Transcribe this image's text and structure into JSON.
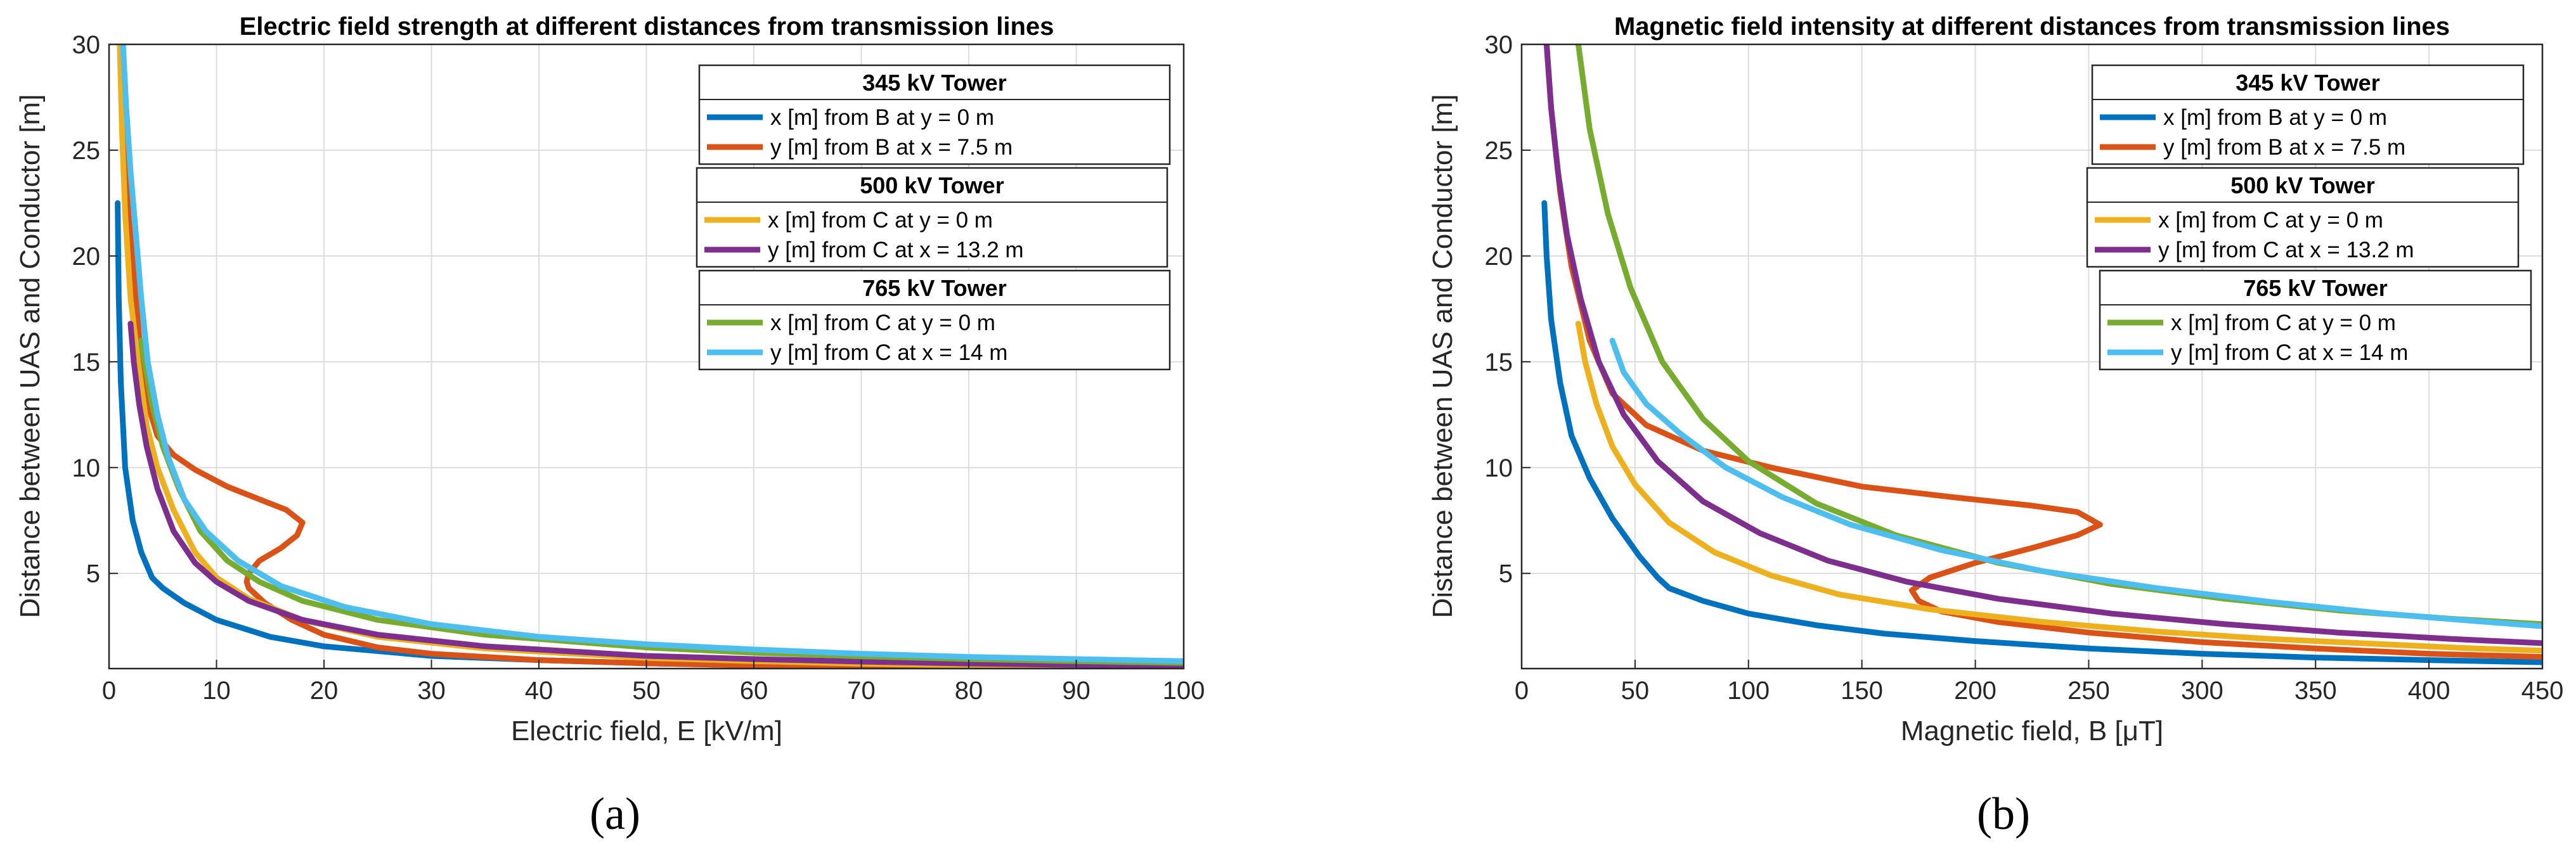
{
  "chart_data": [
    {
      "type": "line",
      "panel_label": "(a)",
      "title": "Electric field strength at different distances from transmission lines",
      "xlabel": "Electric field, E [kV/m]",
      "ylabel": "Distance between UAS and Conductor [m]",
      "xlim": [
        0,
        100
      ],
      "ylim": [
        0.5,
        30
      ],
      "xticks": [
        0,
        10,
        20,
        30,
        40,
        50,
        60,
        70,
        80,
        90,
        100
      ],
      "yticks": [
        5,
        10,
        15,
        20,
        25,
        30
      ],
      "grid": true,
      "legend_position": "top-right",
      "legend_groups": [
        {
          "header": "345 kV Tower",
          "series": [
            0,
            1
          ]
        },
        {
          "header": "500 kV Tower",
          "series": [
            2,
            3
          ]
        },
        {
          "header": "765 kV Tower",
          "series": [
            4,
            5
          ]
        }
      ],
      "series": [
        {
          "name": "x [m] from B at y = 0 m",
          "color": "#0072BD",
          "points": [
            [
              0.8,
              22.5
            ],
            [
              0.9,
              18
            ],
            [
              1.1,
              14
            ],
            [
              1.5,
              10
            ],
            [
              2.2,
              7.5
            ],
            [
              3,
              6
            ],
            [
              4,
              4.8
            ],
            [
              5,
              4.3
            ],
            [
              7,
              3.6
            ],
            [
              10,
              2.8
            ],
            [
              15,
              2
            ],
            [
              20,
              1.55
            ],
            [
              30,
              1.1
            ],
            [
              40,
              0.9
            ],
            [
              50,
              0.75
            ],
            [
              60,
              0.65
            ],
            [
              70,
              0.58
            ],
            [
              80,
              0.52
            ],
            [
              90,
              0.48
            ],
            [
              100,
              0.45
            ]
          ]
        },
        {
          "name": "y [m] from B at x = 7.5 m",
          "color": "#D95319",
          "points": [
            [
              1.2,
              30
            ],
            [
              1.4,
              26
            ],
            [
              1.8,
              22
            ],
            [
              2.5,
              18
            ],
            [
              3,
              15
            ],
            [
              3.6,
              13
            ],
            [
              4.5,
              11.5
            ],
            [
              6,
              10.6
            ],
            [
              8,
              9.9
            ],
            [
              11,
              9.1
            ],
            [
              14,
              8.5
            ],
            [
              16.5,
              8
            ],
            [
              18,
              7.4
            ],
            [
              17.5,
              6.8
            ],
            [
              16,
              6.2
            ],
            [
              14,
              5.6
            ],
            [
              13,
              5
            ],
            [
              12.8,
              4.6
            ],
            [
              13,
              4.3
            ],
            [
              14.5,
              3.6
            ],
            [
              17,
              2.8
            ],
            [
              20,
              2.1
            ],
            [
              25,
              1.5
            ],
            [
              30,
              1.2
            ],
            [
              40,
              0.9
            ],
            [
              50,
              0.75
            ],
            [
              60,
              0.65
            ],
            [
              70,
              0.58
            ],
            [
              80,
              0.53
            ],
            [
              90,
              0.49
            ],
            [
              100,
              0.46
            ]
          ]
        },
        {
          "name": "x [m] from C at y = 0 m",
          "color": "#EDB120",
          "points": [
            [
              1,
              30
            ],
            [
              1.2,
              26
            ],
            [
              1.5,
              22
            ],
            [
              2,
              18
            ],
            [
              2.7,
              15
            ],
            [
              3.5,
              12
            ],
            [
              4.5,
              10
            ],
            [
              6,
              8
            ],
            [
              8,
              6
            ],
            [
              10,
              4.8
            ],
            [
              13,
              3.8
            ],
            [
              18,
              2.8
            ],
            [
              25,
              2
            ],
            [
              35,
              1.45
            ],
            [
              50,
              1
            ],
            [
              60,
              0.85
            ],
            [
              70,
              0.73
            ],
            [
              80,
              0.65
            ],
            [
              90,
              0.58
            ],
            [
              100,
              0.52
            ]
          ]
        },
        {
          "name": "y [m] from C at x = 13.2 m",
          "color": "#7E2F8E",
          "points": [
            [
              2,
              16.8
            ],
            [
              2.3,
              15
            ],
            [
              2.8,
              13
            ],
            [
              3.5,
              11
            ],
            [
              4.5,
              9
            ],
            [
              6,
              7
            ],
            [
              8,
              5.5
            ],
            [
              10,
              4.6
            ],
            [
              13,
              3.7
            ],
            [
              18,
              2.8
            ],
            [
              25,
              2.1
            ],
            [
              35,
              1.55
            ],
            [
              50,
              1.1
            ],
            [
              60,
              0.95
            ],
            [
              70,
              0.83
            ],
            [
              80,
              0.74
            ],
            [
              90,
              0.67
            ],
            [
              100,
              0.6
            ]
          ]
        },
        {
          "name": "x [m] from C at y = 0 m",
          "color": "#77AC30",
          "points": [
            [
              3,
              16
            ],
            [
              3.3,
              15
            ],
            [
              4,
              13
            ],
            [
              5,
              11
            ],
            [
              6.5,
              9
            ],
            [
              8.5,
              7
            ],
            [
              11,
              5.6
            ],
            [
              14,
              4.6
            ],
            [
              18,
              3.7
            ],
            [
              25,
              2.8
            ],
            [
              35,
              2.1
            ],
            [
              50,
              1.5
            ],
            [
              60,
              1.25
            ],
            [
              70,
              1.08
            ],
            [
              80,
              0.95
            ],
            [
              90,
              0.85
            ],
            [
              100,
              0.77
            ]
          ]
        },
        {
          "name": "y [m] from C at x = 14 m",
          "color": "#4DBEEE",
          "points": [
            [
              1.3,
              30
            ],
            [
              1.6,
              27
            ],
            [
              2,
              24
            ],
            [
              2.5,
              21
            ],
            [
              3,
              18
            ],
            [
              3.6,
              15
            ],
            [
              4.5,
              12.5
            ],
            [
              5.5,
              10.5
            ],
            [
              7,
              8.5
            ],
            [
              9,
              7
            ],
            [
              12,
              5.6
            ],
            [
              16,
              4.4
            ],
            [
              22,
              3.4
            ],
            [
              30,
              2.6
            ],
            [
              40,
              2
            ],
            [
              50,
              1.65
            ],
            [
              60,
              1.4
            ],
            [
              70,
              1.2
            ],
            [
              80,
              1.05
            ],
            [
              90,
              0.95
            ],
            [
              100,
              0.85
            ]
          ]
        }
      ]
    },
    {
      "type": "line",
      "panel_label": "(b)",
      "title": "Magnetic field intensity at different distances from transmission lines",
      "xlabel": "Magnetic field, B [μT]",
      "ylabel": "Distance between UAS and Conductor [m]",
      "xlim": [
        0,
        450
      ],
      "ylim": [
        0.5,
        30
      ],
      "xticks": [
        0,
        50,
        100,
        150,
        200,
        250,
        300,
        350,
        400,
        450
      ],
      "yticks": [
        5,
        10,
        15,
        20,
        25,
        30
      ],
      "grid": true,
      "legend_position": "top-right",
      "legend_groups": [
        {
          "header": "345 kV Tower",
          "series": [
            0,
            1
          ]
        },
        {
          "header": "500 kV Tower",
          "series": [
            2,
            3
          ]
        },
        {
          "header": "765 kV Tower",
          "series": [
            4,
            5
          ]
        }
      ],
      "series": [
        {
          "name": "x [m] from B at y = 0 m",
          "color": "#0072BD",
          "points": [
            [
              10,
              22.5
            ],
            [
              11,
              20
            ],
            [
              13,
              17
            ],
            [
              17,
              14
            ],
            [
              22,
              11.5
            ],
            [
              30,
              9.5
            ],
            [
              40,
              7.6
            ],
            [
              52,
              5.8
            ],
            [
              60,
              4.8
            ],
            [
              65,
              4.3
            ],
            [
              80,
              3.7
            ],
            [
              100,
              3.1
            ],
            [
              130,
              2.55
            ],
            [
              160,
              2.15
            ],
            [
              200,
              1.8
            ],
            [
              250,
              1.45
            ],
            [
              300,
              1.2
            ],
            [
              350,
              1.02
            ],
            [
              400,
              0.9
            ],
            [
              450,
              0.8
            ]
          ]
        },
        {
          "name": "y [m] from B at x = 7.5 m",
          "color": "#D95319",
          "points": [
            [
              11,
              30
            ],
            [
              13,
              27
            ],
            [
              17,
              23
            ],
            [
              22,
              19.5
            ],
            [
              30,
              16
            ],
            [
              40,
              13.5
            ],
            [
              55,
              12
            ],
            [
              80,
              10.8
            ],
            [
              110,
              10
            ],
            [
              150,
              9.1
            ],
            [
              190,
              8.6
            ],
            [
              225,
              8.2
            ],
            [
              245,
              7.9
            ],
            [
              255,
              7.3
            ],
            [
              245,
              6.8
            ],
            [
              225,
              6.2
            ],
            [
              200,
              5.5
            ],
            [
              180,
              4.8
            ],
            [
              172,
              4.2
            ],
            [
              175,
              3.7
            ],
            [
              185,
              3.2
            ],
            [
              210,
              2.7
            ],
            [
              250,
              2.2
            ],
            [
              300,
              1.75
            ],
            [
              350,
              1.45
            ],
            [
              400,
              1.2
            ],
            [
              450,
              1.05
            ]
          ]
        },
        {
          "name": "x [m] from C at y = 0 m",
          "color": "#EDB120",
          "points": [
            [
              25,
              16.8
            ],
            [
              28,
              15
            ],
            [
              33,
              13
            ],
            [
              40,
              11
            ],
            [
              50,
              9.2
            ],
            [
              65,
              7.4
            ],
            [
              85,
              6
            ],
            [
              110,
              4.9
            ],
            [
              140,
              4
            ],
            [
              180,
              3.3
            ],
            [
              230,
              2.7
            ],
            [
              280,
              2.25
            ],
            [
              330,
              1.9
            ],
            [
              380,
              1.65
            ],
            [
              420,
              1.45
            ],
            [
              450,
              1.35
            ]
          ]
        },
        {
          "name": "y [m] from C at x = 13.2 m",
          "color": "#7E2F8E",
          "points": [
            [
              11,
              30
            ],
            [
              13,
              27
            ],
            [
              16,
              24
            ],
            [
              20,
              21
            ],
            [
              26,
              18
            ],
            [
              34,
              15
            ],
            [
              45,
              12.5
            ],
            [
              60,
              10.3
            ],
            [
              80,
              8.4
            ],
            [
              105,
              6.9
            ],
            [
              135,
              5.6
            ],
            [
              170,
              4.6
            ],
            [
              210,
              3.8
            ],
            [
              260,
              3.1
            ],
            [
              310,
              2.6
            ],
            [
              360,
              2.2
            ],
            [
              410,
              1.9
            ],
            [
              450,
              1.7
            ]
          ]
        },
        {
          "name": "x [m] from C at y = 0 m",
          "color": "#77AC30",
          "points": [
            [
              25,
              30
            ],
            [
              30,
              26
            ],
            [
              38,
              22
            ],
            [
              48,
              18.5
            ],
            [
              62,
              15
            ],
            [
              80,
              12.3
            ],
            [
              100,
              10.3
            ],
            [
              130,
              8.3
            ],
            [
              165,
              6.8
            ],
            [
              210,
              5.5
            ],
            [
              260,
              4.5
            ],
            [
              310,
              3.8
            ],
            [
              360,
              3.25
            ],
            [
              410,
              2.85
            ],
            [
              450,
              2.6
            ]
          ]
        },
        {
          "name": "y [m] from C at x = 14 m",
          "color": "#4DBEEE",
          "points": [
            [
              40,
              16
            ],
            [
              45,
              14.5
            ],
            [
              55,
              13
            ],
            [
              70,
              11.6
            ],
            [
              90,
              10
            ],
            [
              115,
              8.6
            ],
            [
              145,
              7.3
            ],
            [
              185,
              6.1
            ],
            [
              230,
              5.1
            ],
            [
              280,
              4.3
            ],
            [
              330,
              3.65
            ],
            [
              380,
              3.1
            ],
            [
              420,
              2.75
            ],
            [
              450,
              2.5
            ]
          ]
        }
      ]
    }
  ]
}
